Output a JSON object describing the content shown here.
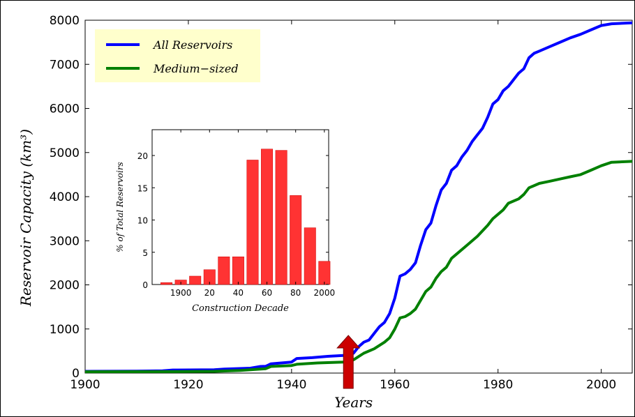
{
  "chart_data": [
    {
      "type": "line",
      "title": "",
      "xlabel": "Years",
      "ylabel": "Reservoir Capacity (km³)",
      "xlim": [
        1900,
        2006
      ],
      "ylim": [
        0,
        8000
      ],
      "x_ticks": [
        "1900",
        "1920",
        "1940",
        "1960",
        "1980",
        "2000"
      ],
      "y_ticks": [
        "0",
        "1000",
        "2000",
        "3000",
        "4000",
        "5000",
        "6000",
        "7000",
        "8000"
      ],
      "legend": "top-left",
      "grid": false,
      "series": [
        {
          "name": "All Reservoirs",
          "color": "#0000ff",
          "points": [
            [
              1900,
              40
            ],
            [
              1910,
              45
            ],
            [
              1915,
              50
            ],
            [
              1917,
              70
            ],
            [
              1925,
              75
            ],
            [
              1927,
              90
            ],
            [
              1932,
              110
            ],
            [
              1934,
              150
            ],
            [
              1935,
              155
            ],
            [
              1936,
              210
            ],
            [
              1940,
              250
            ],
            [
              1941,
              330
            ],
            [
              1944,
              350
            ],
            [
              1947,
              380
            ],
            [
              1950,
              400
            ],
            [
              1952,
              450
            ],
            [
              1953,
              600
            ],
            [
              1954,
              700
            ],
            [
              1955,
              750
            ],
            [
              1956,
              900
            ],
            [
              1957,
              1050
            ],
            [
              1958,
              1150
            ],
            [
              1959,
              1350
            ],
            [
              1960,
              1700
            ],
            [
              1961,
              2200
            ],
            [
              1962,
              2250
            ],
            [
              1963,
              2350
            ],
            [
              1964,
              2500
            ],
            [
              1965,
              2900
            ],
            [
              1966,
              3250
            ],
            [
              1967,
              3400
            ],
            [
              1968,
              3800
            ],
            [
              1969,
              4150
            ],
            [
              1970,
              4300
            ],
            [
              1971,
              4600
            ],
            [
              1972,
              4700
            ],
            [
              1973,
              4900
            ],
            [
              1974,
              5050
            ],
            [
              1975,
              5250
            ],
            [
              1976,
              5400
            ],
            [
              1977,
              5550
            ],
            [
              1978,
              5800
            ],
            [
              1979,
              6100
            ],
            [
              1980,
              6200
            ],
            [
              1981,
              6400
            ],
            [
              1982,
              6500
            ],
            [
              1983,
              6650
            ],
            [
              1984,
              6800
            ],
            [
              1985,
              6900
            ],
            [
              1986,
              7150
            ],
            [
              1987,
              7250
            ],
            [
              1988,
              7300
            ],
            [
              1990,
              7400
            ],
            [
              1992,
              7500
            ],
            [
              1994,
              7600
            ],
            [
              1996,
              7680
            ],
            [
              1998,
              7780
            ],
            [
              2000,
              7880
            ],
            [
              2002,
              7920
            ],
            [
              2006,
              7940
            ]
          ]
        },
        {
          "name": "Medium−sized",
          "color": "#008000",
          "points": [
            [
              1900,
              30
            ],
            [
              1910,
              32
            ],
            [
              1920,
              35
            ],
            [
              1925,
              40
            ],
            [
              1930,
              60
            ],
            [
              1935,
              100
            ],
            [
              1936,
              150
            ],
            [
              1940,
              170
            ],
            [
              1941,
              200
            ],
            [
              1945,
              230
            ],
            [
              1950,
              250
            ],
            [
              1952,
              300
            ],
            [
              1954,
              450
            ],
            [
              1956,
              550
            ],
            [
              1958,
              700
            ],
            [
              1959,
              800
            ],
            [
              1960,
              1000
            ],
            [
              1961,
              1250
            ],
            [
              1962,
              1280
            ],
            [
              1963,
              1350
            ],
            [
              1964,
              1450
            ],
            [
              1965,
              1650
            ],
            [
              1966,
              1850
            ],
            [
              1967,
              1950
            ],
            [
              1968,
              2150
            ],
            [
              1969,
              2300
            ],
            [
              1970,
              2400
            ],
            [
              1971,
              2600
            ],
            [
              1972,
              2700
            ],
            [
              1974,
              2900
            ],
            [
              1976,
              3100
            ],
            [
              1978,
              3350
            ],
            [
              1979,
              3500
            ],
            [
              1980,
              3600
            ],
            [
              1981,
              3700
            ],
            [
              1982,
              3850
            ],
            [
              1984,
              3950
            ],
            [
              1985,
              4050
            ],
            [
              1986,
              4200
            ],
            [
              1988,
              4300
            ],
            [
              1990,
              4350
            ],
            [
              1992,
              4400
            ],
            [
              1994,
              4450
            ],
            [
              1996,
              4500
            ],
            [
              1998,
              4600
            ],
            [
              2000,
              4700
            ],
            [
              2002,
              4780
            ],
            [
              2006,
              4800
            ]
          ]
        }
      ]
    },
    {
      "type": "bar",
      "title": "",
      "xlabel": "Construction Decade",
      "ylabel": "% of Total Reservoirs",
      "categories": [
        "1890",
        "1900",
        "1910",
        "1920",
        "1930",
        "1940",
        "1950",
        "1960",
        "1970",
        "1980",
        "1990",
        "2000"
      ],
      "values": [
        0.3,
        0.7,
        1.3,
        2.3,
        4.3,
        4.3,
        19.3,
        21.0,
        20.8,
        13.8,
        8.8,
        3.6
      ],
      "x_ticks": [
        "1900",
        "20",
        "40",
        "60",
        "80",
        "2000"
      ],
      "y_ticks": [
        "0",
        "5",
        "10",
        "15",
        "20"
      ],
      "ylim": [
        0,
        24
      ],
      "color": "#ff3333",
      "grid": false
    }
  ],
  "colors": {
    "legend_background": "#ffffcc",
    "marker_arrow": "#cc0000"
  },
  "annotations": {
    "marker_arrow_year": 1951
  }
}
